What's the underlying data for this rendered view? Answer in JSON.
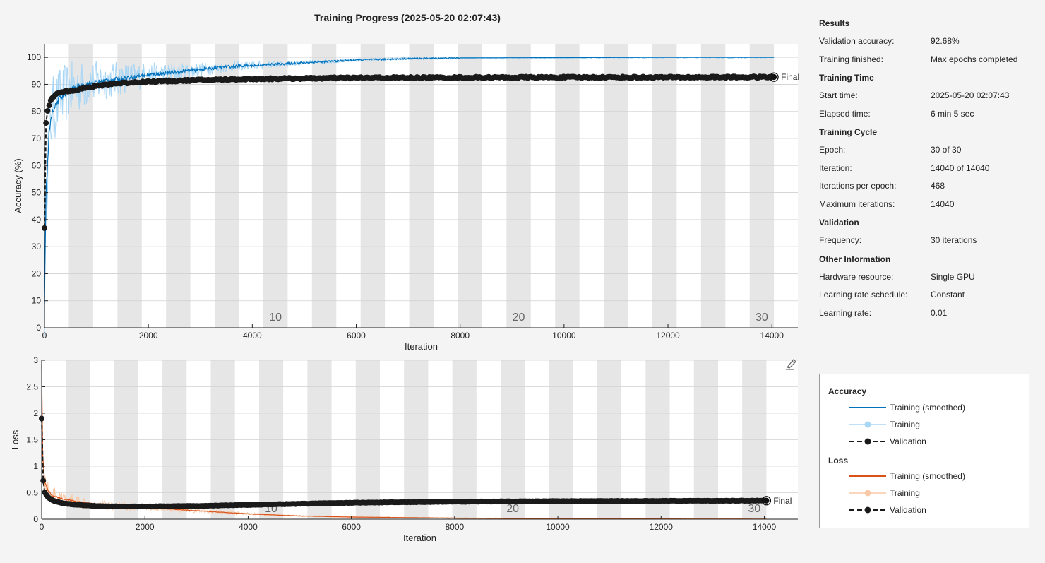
{
  "title": "Training Progress (2025-05-20 02:07:43)",
  "colors": {
    "acc_smoothed": "#0072bd",
    "acc_raw": "#a8d6f5",
    "loss_smoothed": "#d95319",
    "loss_raw": "#f8c9a6",
    "validation": "#1a1a1a",
    "epoch_band": "#e6e6e6"
  },
  "results": {
    "sections": [
      {
        "heading": "Results",
        "rows": [
          {
            "label": "Validation accuracy:",
            "value": "92.68%"
          },
          {
            "label": "Training finished:",
            "value": "Max epochs completed"
          }
        ]
      },
      {
        "heading": "Training Time",
        "rows": [
          {
            "label": "Start time:",
            "value": "2025-05-20 02:07:43"
          },
          {
            "label": "Elapsed time:",
            "value": "6 min 5 sec"
          }
        ]
      },
      {
        "heading": "Training Cycle",
        "rows": [
          {
            "label": "Epoch:",
            "value": "30 of 30"
          },
          {
            "label": "Iteration:",
            "value": "14040 of 14040"
          },
          {
            "label": "Iterations per epoch:",
            "value": "468"
          },
          {
            "label": "Maximum iterations:",
            "value": "14040"
          }
        ]
      },
      {
        "heading": "Validation",
        "rows": [
          {
            "label": "Frequency:",
            "value": "30 iterations"
          }
        ]
      },
      {
        "heading": "Other Information",
        "rows": [
          {
            "label": "Hardware resource:",
            "value": "Single GPU"
          },
          {
            "label": "Learning rate schedule:",
            "value": "Constant"
          },
          {
            "label": "Learning rate:",
            "value": "0.01"
          }
        ]
      }
    ]
  },
  "legend": {
    "accuracy_heading": "Accuracy",
    "loss_heading": "Loss",
    "training_smoothed": "Training (smoothed)",
    "training": "Training",
    "validation": "Validation"
  },
  "edit_icon": "edit-axes-icon",
  "chart_data": [
    {
      "type": "line",
      "ylabel": "Accuracy (%)",
      "xlabel": "Iteration",
      "xlim": [
        0,
        14500
      ],
      "ylim": [
        0,
        105
      ],
      "xticks": [
        0,
        2000,
        4000,
        6000,
        8000,
        10000,
        12000,
        14000
      ],
      "yticks": [
        0,
        10,
        20,
        30,
        40,
        50,
        60,
        70,
        80,
        90,
        100
      ],
      "grid": true,
      "iterations_per_epoch": 468,
      "epoch_labels": [
        10,
        20,
        30
      ],
      "final_label": "Final",
      "series": [
        {
          "name": "Training (smoothed)",
          "x": [
            0,
            30,
            90,
            150,
            300,
            500,
            800,
            1200,
            1600,
            2000,
            2500,
            3000,
            3500,
            4000,
            4500,
            5000,
            5500,
            6000,
            7000,
            8000,
            10000,
            12000,
            14040
          ],
          "y": [
            8,
            50,
            72,
            80,
            85,
            88,
            90,
            91.5,
            92.5,
            93.5,
            94.5,
            95.5,
            96.5,
            97,
            97.5,
            98,
            98.5,
            99,
            99.5,
            99.8,
            99.9,
            100,
            100
          ]
        },
        {
          "name": "Validation",
          "x": [
            0,
            30,
            60,
            90,
            120,
            150,
            210,
            300,
            420,
            600,
            900,
            1200,
            1500,
            2000,
            2500,
            3000,
            4000,
            5000,
            6000,
            8000,
            10000,
            12000,
            14040
          ],
          "y": [
            37,
            76,
            80,
            82,
            84,
            85,
            86,
            87,
            87.5,
            88,
            89,
            90,
            90.5,
            91,
            91.3,
            91.6,
            92,
            92.2,
            92.4,
            92.5,
            92.6,
            92.6,
            92.68
          ]
        }
      ]
    },
    {
      "type": "line",
      "ylabel": "Loss",
      "xlabel": "Iteration",
      "xlim": [
        0,
        14650
      ],
      "ylim": [
        0,
        3
      ],
      "xticks": [
        0,
        2000,
        4000,
        6000,
        8000,
        10000,
        12000,
        14000
      ],
      "yticks": [
        0,
        0.5,
        1,
        1.5,
        2,
        2.5,
        3
      ],
      "grid": true,
      "iterations_per_epoch": 468,
      "epoch_labels": [
        10,
        20,
        30
      ],
      "final_label": "Final",
      "series": [
        {
          "name": "Training (smoothed)",
          "x": [
            0,
            20,
            60,
            120,
            200,
            400,
            700,
            1000,
            1500,
            2000,
            2500,
            3000,
            3500,
            4000,
            4500,
            5000,
            6000,
            7000,
            8000,
            10000,
            12000,
            14040
          ],
          "y": [
            2.9,
            1.2,
            0.7,
            0.55,
            0.45,
            0.38,
            0.33,
            0.29,
            0.25,
            0.22,
            0.19,
            0.16,
            0.13,
            0.1,
            0.08,
            0.06,
            0.04,
            0.03,
            0.02,
            0.01,
            0.005,
            0.003
          ]
        },
        {
          "name": "Validation",
          "x": [
            0,
            30,
            60,
            120,
            200,
            400,
            700,
            1000,
            1500,
            2000,
            2500,
            3000,
            4000,
            5000,
            6000,
            8000,
            10000,
            12000,
            14040
          ],
          "y": [
            1.9,
            0.73,
            0.5,
            0.42,
            0.36,
            0.3,
            0.27,
            0.25,
            0.24,
            0.24,
            0.245,
            0.25,
            0.27,
            0.29,
            0.31,
            0.33,
            0.34,
            0.345,
            0.35
          ]
        }
      ]
    }
  ]
}
